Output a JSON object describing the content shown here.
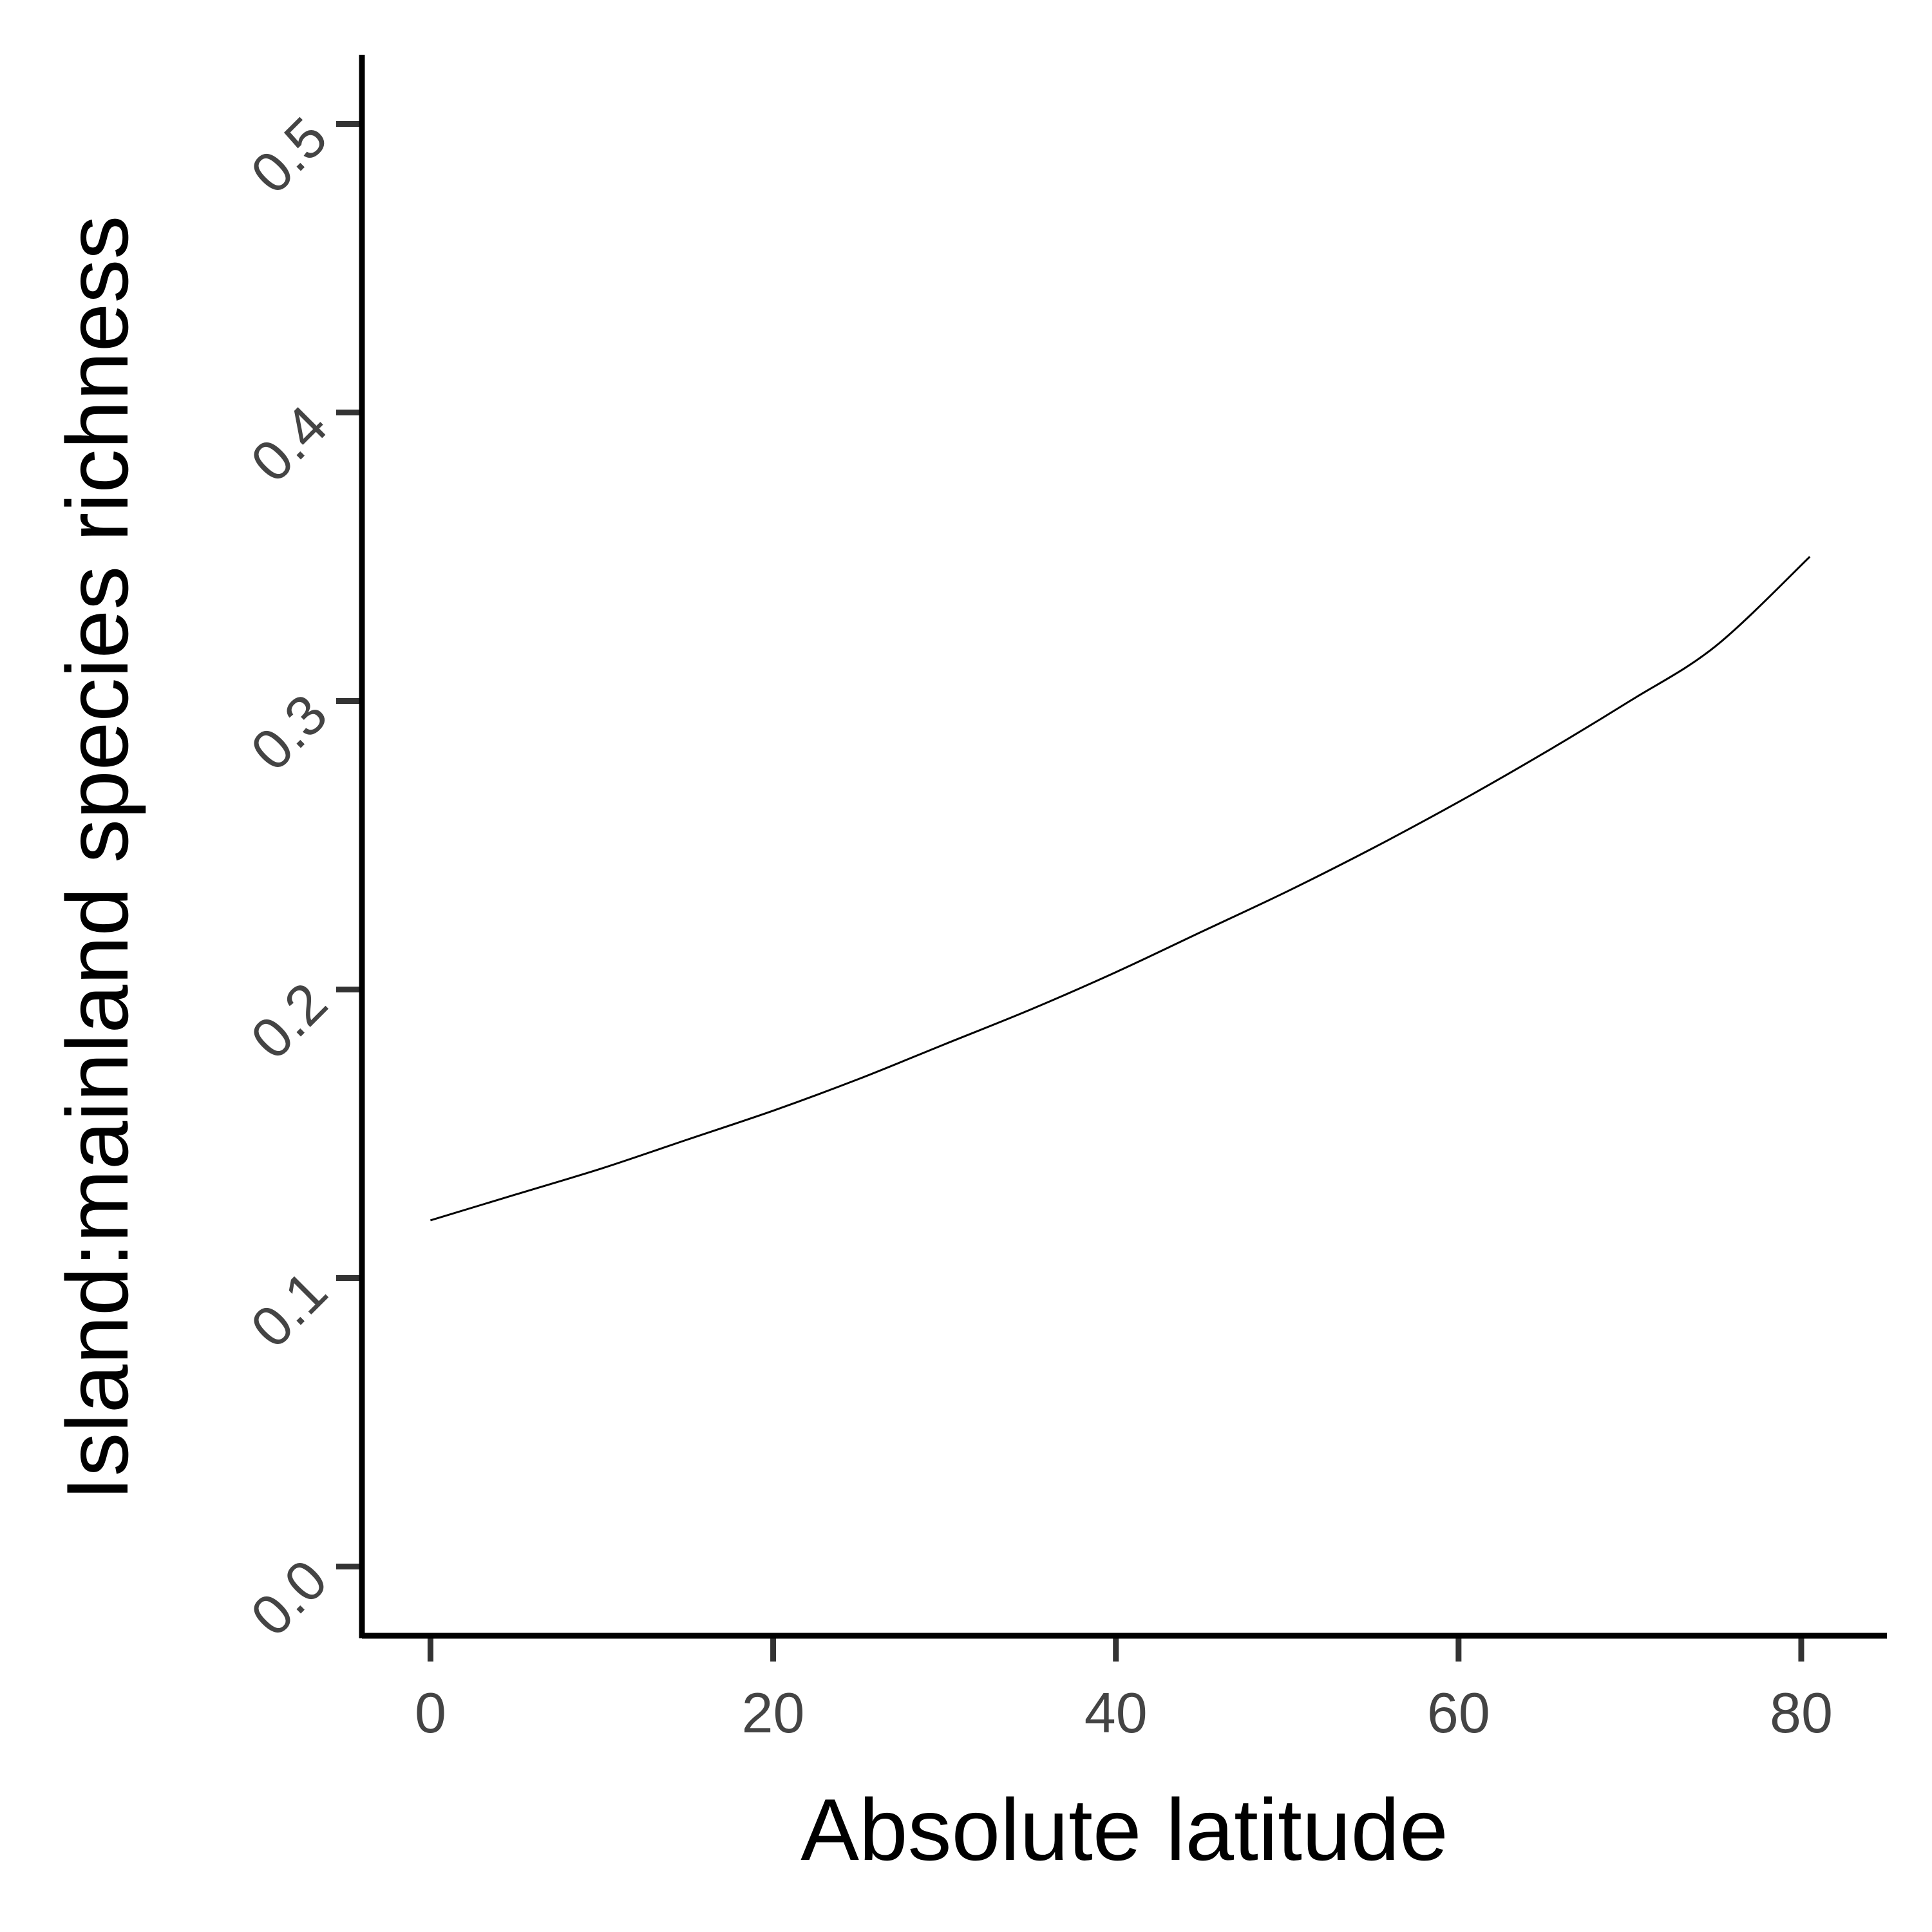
{
  "chart_data": {
    "type": "line",
    "xlabel": "Absolute latitude",
    "ylabel": "Island:mainland species richness",
    "xlim": [
      -4,
      85
    ],
    "ylim": [
      -0.024,
      0.524
    ],
    "x_ticks": [
      0,
      20,
      40,
      60,
      80
    ],
    "x_tick_labels": [
      "0",
      "20",
      "40",
      "60",
      "80"
    ],
    "y_ticks": [
      0.0,
      0.1,
      0.2,
      0.3,
      0.4,
      0.5
    ],
    "y_tick_labels": [
      "0.0",
      "0.1",
      "0.2",
      "0.3",
      "0.4",
      "0.5"
    ],
    "grid": false,
    "legend": "none",
    "line_color": "#000000",
    "series": [
      {
        "x": [
          0,
          5,
          10,
          15,
          20,
          25,
          30,
          35,
          40,
          45,
          50,
          55,
          60,
          65,
          70,
          75,
          80.5
        ],
        "values": [
          0.12,
          0.129,
          0.138,
          0.148,
          0.158,
          0.169,
          0.181,
          0.193,
          0.206,
          0.22,
          0.234,
          0.249,
          0.265,
          0.282,
          0.3,
          0.319,
          0.35
        ]
      }
    ]
  }
}
